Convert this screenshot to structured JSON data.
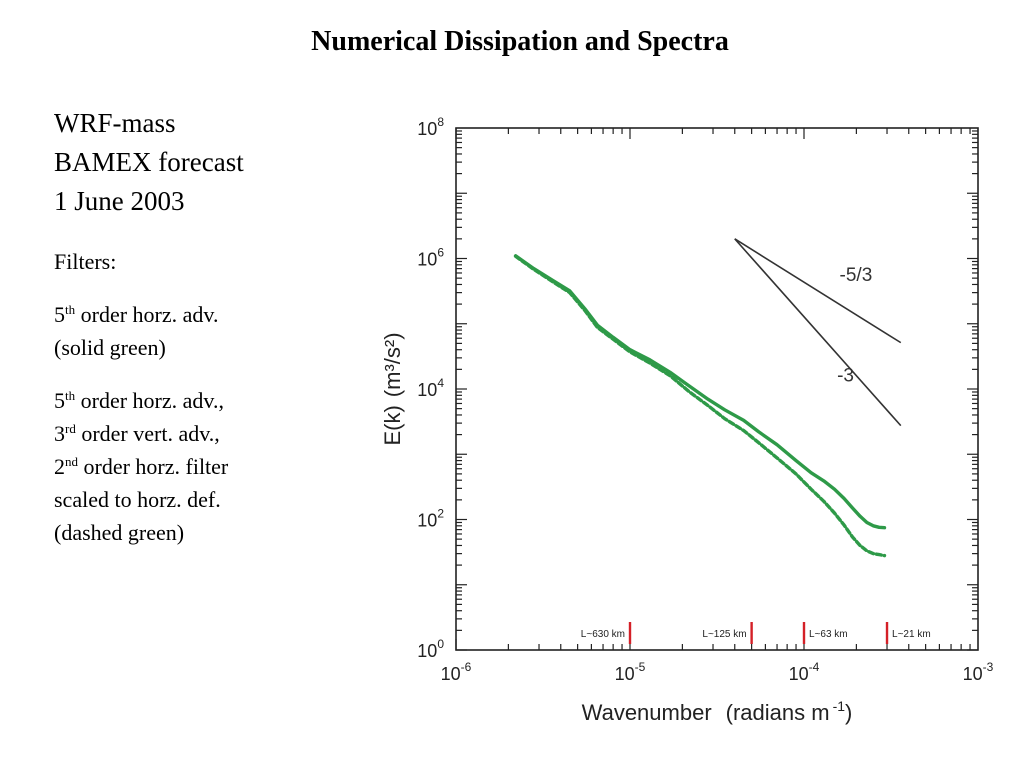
{
  "slide": {
    "title": "Numerical Dissipation and Spectra",
    "left_lines": {
      "model": "WRF-mass",
      "forecast": "BAMEX forecast",
      "date": "1 June 2003",
      "filters_label": "Filters:",
      "f1_order_num": "5",
      "f1_order_sup": "th",
      "f1_rest": " order horz. adv.",
      "f1_style": "(solid green)",
      "f2_line1_num": "5",
      "f2_line1_sup": "th",
      "f2_line1_rest": " order horz. adv.,",
      "f2_line2_num": "3",
      "f2_line2_sup": "rd",
      "f2_line2_rest": " order vert. adv.,",
      "f2_line3_num": "2",
      "f2_line3_sup": "nd",
      "f2_line3_rest": " order horz. filter",
      "f2_line4": "scaled to horz. def.",
      "f2_style": "(dashed green)"
    }
  },
  "colors": {
    "series": "#2e9a48",
    "wavelength_marks": "#d42027",
    "reference_lines": "#333333",
    "axis": "#222222"
  },
  "chart_data": {
    "type": "line",
    "xscale": "log",
    "yscale": "log",
    "xlim": [
      1e-06,
      0.001
    ],
    "ylim": [
      1,
      100000000
    ],
    "xlabel": "Wavenumber",
    "xlabel_units": "(radians m",
    "xlabel_units_sup": "-1",
    "xlabel_units_close": ")",
    "ylabel": "E(k)",
    "ylabel_units": "(m³/s²)",
    "x_ticks": [
      {
        "base": "10",
        "exp": "-6",
        "value": 1e-06
      },
      {
        "base": "10",
        "exp": "-5",
        "value": 1e-05
      },
      {
        "base": "10",
        "exp": "-4",
        "value": 0.0001
      },
      {
        "base": "10",
        "exp": "-3",
        "value": 0.001
      }
    ],
    "y_ticks": [
      {
        "base": "10",
        "exp": "0",
        "value": 1
      },
      {
        "base": "10",
        "exp": "2",
        "value": 100
      },
      {
        "base": "10",
        "exp": "4",
        "value": 10000
      },
      {
        "base": "10",
        "exp": "6",
        "value": 1000000
      },
      {
        "base": "10",
        "exp": "8",
        "value": 100000000
      }
    ],
    "series": [
      {
        "style": "solid",
        "x": [
          2.2e-06,
          2.8e-06,
          3.6e-06,
          4.5e-06,
          5.5e-06,
          6.5e-06,
          8e-06,
          1e-05,
          1.3e-05,
          1.7e-05,
          2.2e-05,
          2.8e-05,
          3.5e-05,
          4.5e-05,
          5.5e-05,
          7e-05,
          9e-05,
          0.00011,
          0.00013,
          0.00015,
          0.00017,
          0.00019,
          0.00021,
          0.00023,
          0.00025,
          0.00027,
          0.00029
        ],
        "y": [
          1100000,
          700000,
          460000,
          320000,
          170000,
          95000,
          62000,
          40000,
          28000,
          18000,
          11000,
          7000,
          4800,
          3300,
          2200,
          1400,
          800,
          520,
          390,
          290,
          210,
          150,
          112,
          90,
          80,
          76,
          75
        ]
      },
      {
        "style": "dashed",
        "x": [
          2.2e-06,
          2.8e-06,
          3.6e-06,
          4.5e-06,
          5.5e-06,
          6.5e-06,
          8e-06,
          1e-05,
          1.3e-05,
          1.7e-05,
          2.2e-05,
          2.8e-05,
          3.5e-05,
          4.5e-05,
          5.5e-05,
          7e-05,
          9e-05,
          0.00011,
          0.00013,
          0.00015,
          0.00017,
          0.00019,
          0.00021,
          0.00023,
          0.00025,
          0.00027,
          0.00029
        ],
        "y": [
          1080000,
          680000,
          440000,
          300000,
          160000,
          88000,
          58000,
          37000,
          25000,
          16000,
          9000,
          5600,
          3500,
          2300,
          1500,
          880,
          500,
          290,
          190,
          125,
          82,
          54,
          40,
          33,
          30,
          29,
          28
        ]
      }
    ],
    "reference_lines": [
      {
        "label": "-5/3",
        "slope": -1.6667,
        "x_start": 4e-05,
        "x_end": 0.00036,
        "y_start": 2000000,
        "label_x": 0.00016,
        "label_y": 450000
      },
      {
        "label": "-3",
        "slope": -3,
        "x_start": 4e-05,
        "x_end": 0.00036,
        "y_start": 2000000,
        "label_x": 0.000155,
        "label_y": 13000
      }
    ],
    "wavelength_markers": [
      {
        "label": "L~630 km",
        "x": 1e-05,
        "label_side": "left"
      },
      {
        "label": "L~125 km",
        "x": 5e-05,
        "label_side": "left"
      },
      {
        "label": "L~63 km",
        "x": 0.0001,
        "label_side": "right"
      },
      {
        "label": "L~21 km",
        "x": 0.0003,
        "label_side": "right"
      }
    ]
  }
}
